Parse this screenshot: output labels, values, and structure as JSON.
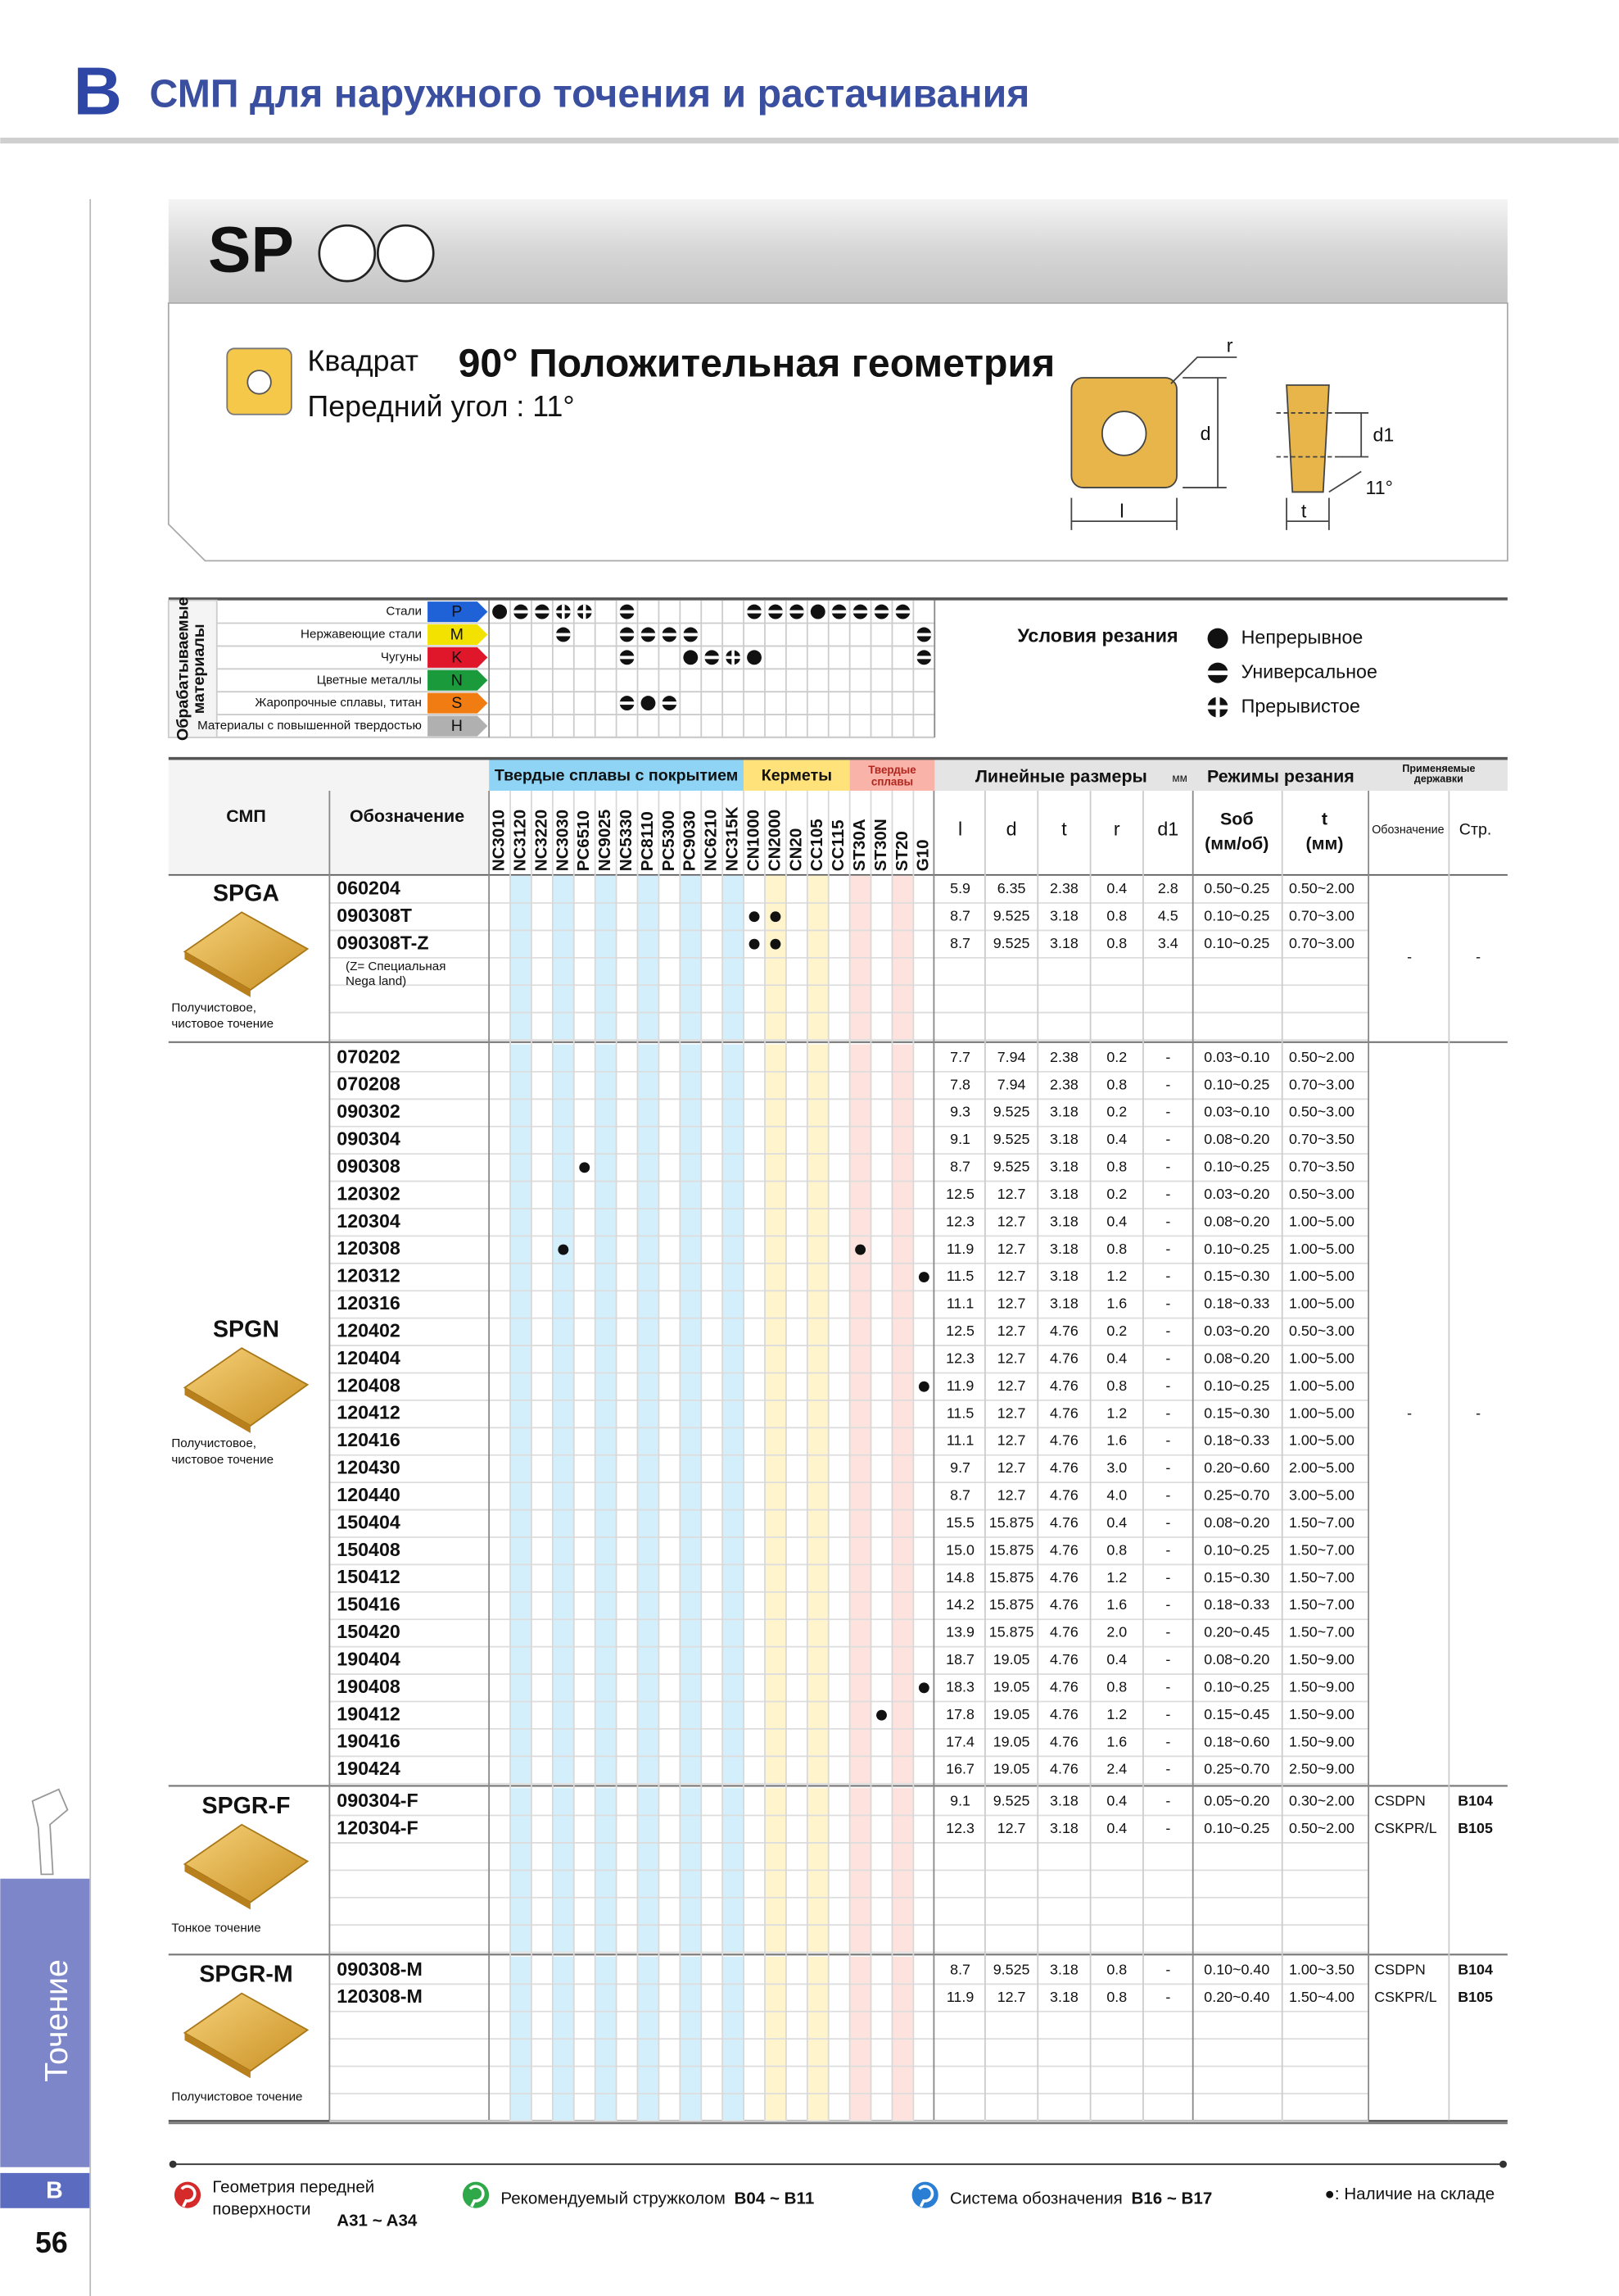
{
  "header": {
    "letter": "B",
    "title": "СМП для наружного точения и растачивания"
  },
  "product": {
    "code": "SP",
    "shape": "Квадрат",
    "geometry": "90° Положительная геометрия",
    "rake_angle": "Передний угол : 11°",
    "diagram_labels": {
      "r": "r",
      "d": "d",
      "l": "l",
      "d1": "d1",
      "t": "t",
      "angle": "11°"
    }
  },
  "materials": {
    "title": "Обрабатываемые материалы",
    "rows": [
      {
        "name": "Стали",
        "iso": "P",
        "color": "#1f62d8",
        "grades": "cuuii.u.....uuucuuuu."
      },
      {
        "name": "Нержавеющие стали",
        "iso": "M",
        "color": "#f3e200",
        "grades": "...u..uuuu..........u"
      },
      {
        "name": "Чугуны",
        "iso": "K",
        "color": "#e0162a",
        "grades": "......u..cuic.......u"
      },
      {
        "name": "Цветные металлы",
        "iso": "N",
        "color": "#1b9a3c",
        "grades": "....................."
      },
      {
        "name": "Жаропрочные сплавы, титан",
        "iso": "S",
        "color": "#f07c12",
        "grades": "......ucu............"
      },
      {
        "name": "Материалы с повышенной твердостью",
        "iso": "H",
        "color": "#b0b0b0",
        "grades": "....................."
      }
    ]
  },
  "cutting_conditions": {
    "title": "Условия резания",
    "legend": [
      {
        "symbol": "c",
        "label": "Непрерывное"
      },
      {
        "symbol": "u",
        "label": "Универсальное"
      },
      {
        "symbol": "i",
        "label": "Прерывистое"
      }
    ]
  },
  "table": {
    "headers": {
      "insert": "СМП",
      "designation": "Обозначение",
      "dimensions": "Линейные размеры",
      "unit": "мм",
      "dim_columns": [
        "l",
        "d",
        "t",
        "r",
        "d1"
      ],
      "conditions": "Режимы резания",
      "feed": "Sоб",
      "feed_unit": "(мм/об)",
      "depth": "t",
      "depth_unit": "(мм)",
      "holders": "Применяемые державки",
      "holder_code": "Обозначение",
      "holder_page": "Стр."
    },
    "groups": [
      {
        "name": "Твердые сплавы с покрытием",
        "color": "#8fd4f5",
        "stripe": "#d4effc",
        "grades": [
          "NC3010",
          "NC3120",
          "NC3220",
          "NC3030",
          "PC6510",
          "NC9025",
          "NC5330",
          "PC8110",
          "PC5300",
          "PC9030",
          "NC6210",
          "NC315K"
        ]
      },
      {
        "name": "Керметы",
        "color": "#ffe27a",
        "stripe": "#fff4cc",
        "grades": [
          "CN1000",
          "CN2000",
          "CN20",
          "CC105",
          "CC115"
        ]
      },
      {
        "name": "Твердые сплавы",
        "color": "#f9b3a8",
        "stripe": "#fde2dd",
        "grades": [
          "ST30A",
          "ST30N",
          "ST20",
          "G10"
        ]
      }
    ],
    "sections": [
      {
        "name": "SPGA",
        "caption": "Получистовое, чистовое точение",
        "holder": "-",
        "page": "-",
        "rows": [
          {
            "code": "060204",
            "stock": [],
            "dims": [
              "5.9",
              "6.35",
              "2.38",
              "0.4",
              "2.8"
            ],
            "feed": "0.50~0.25",
            "depth": "0.50~2.00"
          },
          {
            "code": "090308T",
            "stock": [
              "CN1000",
              "CN2000"
            ],
            "dims": [
              "8.7",
              "9.525",
              "3.18",
              "0.8",
              "4.5"
            ],
            "feed": "0.10~0.25",
            "depth": "0.70~3.00"
          },
          {
            "code": "090308T-Z",
            "note": "(Z= Специальная Nega land)",
            "stock": [
              "CN1000",
              "CN2000"
            ],
            "dims": [
              "8.7",
              "9.525",
              "3.18",
              "0.8",
              "3.4"
            ],
            "feed": "0.10~0.25",
            "depth": "0.70~3.00"
          }
        ]
      },
      {
        "name": "SPGN",
        "caption": "Получистовое, чистовое точение",
        "holder": "-",
        "page": "-",
        "rows": [
          {
            "code": "070202",
            "stock": [],
            "dims": [
              "7.7",
              "7.94",
              "2.38",
              "0.2",
              "-"
            ],
            "feed": "0.03~0.10",
            "depth": "0.50~2.00"
          },
          {
            "code": "070208",
            "stock": [],
            "dims": [
              "7.8",
              "7.94",
              "2.38",
              "0.8",
              "-"
            ],
            "feed": "0.10~0.25",
            "depth": "0.70~3.00"
          },
          {
            "code": "090302",
            "stock": [],
            "dims": [
              "9.3",
              "9.525",
              "3.18",
              "0.2",
              "-"
            ],
            "feed": "0.03~0.10",
            "depth": "0.50~3.00"
          },
          {
            "code": "090304",
            "stock": [],
            "dims": [
              "9.1",
              "9.525",
              "3.18",
              "0.4",
              "-"
            ],
            "feed": "0.08~0.20",
            "depth": "0.70~3.50"
          },
          {
            "code": "090308",
            "stock": [
              "PC6510"
            ],
            "dims": [
              "8.7",
              "9.525",
              "3.18",
              "0.8",
              "-"
            ],
            "feed": "0.10~0.25",
            "depth": "0.70~3.50"
          },
          {
            "code": "120302",
            "stock": [],
            "dims": [
              "12.5",
              "12.7",
              "3.18",
              "0.2",
              "-"
            ],
            "feed": "0.03~0.20",
            "depth": "0.50~3.00"
          },
          {
            "code": "120304",
            "stock": [],
            "dims": [
              "12.3",
              "12.7",
              "3.18",
              "0.4",
              "-"
            ],
            "feed": "0.08~0.20",
            "depth": "1.00~5.00"
          },
          {
            "code": "120308",
            "stock": [
              "NC3030",
              "ST30A"
            ],
            "dims": [
              "11.9",
              "12.7",
              "3.18",
              "0.8",
              "-"
            ],
            "feed": "0.10~0.25",
            "depth": "1.00~5.00"
          },
          {
            "code": "120312",
            "stock": [
              "G10"
            ],
            "dims": [
              "11.5",
              "12.7",
              "3.18",
              "1.2",
              "-"
            ],
            "feed": "0.15~0.30",
            "depth": "1.00~5.00"
          },
          {
            "code": "120316",
            "stock": [],
            "dims": [
              "11.1",
              "12.7",
              "3.18",
              "1.6",
              "-"
            ],
            "feed": "0.18~0.33",
            "depth": "1.00~5.00"
          },
          {
            "code": "120402",
            "stock": [],
            "dims": [
              "12.5",
              "12.7",
              "4.76",
              "0.2",
              "-"
            ],
            "feed": "0.03~0.20",
            "depth": "0.50~3.00"
          },
          {
            "code": "120404",
            "stock": [],
            "dims": [
              "12.3",
              "12.7",
              "4.76",
              "0.4",
              "-"
            ],
            "feed": "0.08~0.20",
            "depth": "1.00~5.00"
          },
          {
            "code": "120408",
            "stock": [
              "G10"
            ],
            "dims": [
              "11.9",
              "12.7",
              "4.76",
              "0.8",
              "-"
            ],
            "feed": "0.10~0.25",
            "depth": "1.00~5.00"
          },
          {
            "code": "120412",
            "stock": [],
            "dims": [
              "11.5",
              "12.7",
              "4.76",
              "1.2",
              "-"
            ],
            "feed": "0.15~0.30",
            "depth": "1.00~5.00"
          },
          {
            "code": "120416",
            "stock": [],
            "dims": [
              "11.1",
              "12.7",
              "4.76",
              "1.6",
              "-"
            ],
            "feed": "0.18~0.33",
            "depth": "1.00~5.00"
          },
          {
            "code": "120430",
            "stock": [],
            "dims": [
              "9.7",
              "12.7",
              "4.76",
              "3.0",
              "-"
            ],
            "feed": "0.20~0.60",
            "depth": "2.00~5.00"
          },
          {
            "code": "120440",
            "stock": [],
            "dims": [
              "8.7",
              "12.7",
              "4.76",
              "4.0",
              "-"
            ],
            "feed": "0.25~0.70",
            "depth": "3.00~5.00"
          },
          {
            "code": "150404",
            "stock": [],
            "dims": [
              "15.5",
              "15.875",
              "4.76",
              "0.4",
              "-"
            ],
            "feed": "0.08~0.20",
            "depth": "1.50~7.00"
          },
          {
            "code": "150408",
            "stock": [],
            "dims": [
              "15.0",
              "15.875",
              "4.76",
              "0.8",
              "-"
            ],
            "feed": "0.10~0.25",
            "depth": "1.50~7.00"
          },
          {
            "code": "150412",
            "stock": [],
            "dims": [
              "14.8",
              "15.875",
              "4.76",
              "1.2",
              "-"
            ],
            "feed": "0.15~0.30",
            "depth": "1.50~7.00"
          },
          {
            "code": "150416",
            "stock": [],
            "dims": [
              "14.2",
              "15.875",
              "4.76",
              "1.6",
              "-"
            ],
            "feed": "0.18~0.33",
            "depth": "1.50~7.00"
          },
          {
            "code": "150420",
            "stock": [],
            "dims": [
              "13.9",
              "15.875",
              "4.76",
              "2.0",
              "-"
            ],
            "feed": "0.20~0.45",
            "depth": "1.50~7.00"
          },
          {
            "code": "190404",
            "stock": [],
            "dims": [
              "18.7",
              "19.05",
              "4.76",
              "0.4",
              "-"
            ],
            "feed": "0.08~0.20",
            "depth": "1.50~9.00"
          },
          {
            "code": "190408",
            "stock": [
              "G10"
            ],
            "dims": [
              "18.3",
              "19.05",
              "4.76",
              "0.8",
              "-"
            ],
            "feed": "0.10~0.25",
            "depth": "1.50~9.00"
          },
          {
            "code": "190412",
            "stock": [
              "ST30N"
            ],
            "dims": [
              "17.8",
              "19.05",
              "4.76",
              "1.2",
              "-"
            ],
            "feed": "0.15~0.45",
            "depth": "1.50~9.00"
          },
          {
            "code": "190416",
            "stock": [],
            "dims": [
              "17.4",
              "19.05",
              "4.76",
              "1.6",
              "-"
            ],
            "feed": "0.18~0.60",
            "depth": "1.50~9.00"
          },
          {
            "code": "190424",
            "stock": [],
            "dims": [
              "16.7",
              "19.05",
              "4.76",
              "2.4",
              "-"
            ],
            "feed": "0.25~0.70",
            "depth": "2.50~9.00"
          }
        ]
      },
      {
        "name": "SPGR-F",
        "caption": "Тонкое точение",
        "rows": [
          {
            "code": "090304-F",
            "stock": [],
            "dims": [
              "9.1",
              "9.525",
              "3.18",
              "0.4",
              "-"
            ],
            "feed": "0.05~0.20",
            "depth": "0.30~2.00",
            "holder": "CSDPN",
            "page": "B104"
          },
          {
            "code": "120304-F",
            "stock": [],
            "dims": [
              "12.3",
              "12.7",
              "3.18",
              "0.4",
              "-"
            ],
            "feed": "0.10~0.25",
            "depth": "0.50~2.00",
            "holder": "CSKPR/L",
            "page": "B105"
          }
        ]
      },
      {
        "name": "SPGR-M",
        "caption": "Получистовое точение",
        "rows": [
          {
            "code": "090308-M",
            "stock": [],
            "dims": [
              "8.7",
              "9.525",
              "3.18",
              "0.8",
              "-"
            ],
            "feed": "0.10~0.40",
            "depth": "1.00~3.50",
            "holder": "CSDPN",
            "page": "B104"
          },
          {
            "code": "120308-M",
            "stock": [],
            "dims": [
              "11.9",
              "12.7",
              "3.18",
              "0.8",
              "-"
            ],
            "feed": "0.20~0.40",
            "depth": "1.50~4.00",
            "holder": "CSKPR/L",
            "page": "B105"
          }
        ]
      }
    ]
  },
  "footer": {
    "links": [
      {
        "label": "Геометрия передней поверхности",
        "ref": "A31 ~ A34",
        "color": "#d42a2a"
      },
      {
        "label": "Рекомендуемый стружколом",
        "ref": "B04 ~ B11",
        "color": "#2fa84a"
      },
      {
        "label": "Система обозначения",
        "ref": "B16 ~ B17",
        "color": "#2a7fd4"
      }
    ],
    "stock_note": "●: Наличие на складе"
  },
  "sidebar": {
    "section": "Точение",
    "letter": "B",
    "page": "56"
  }
}
